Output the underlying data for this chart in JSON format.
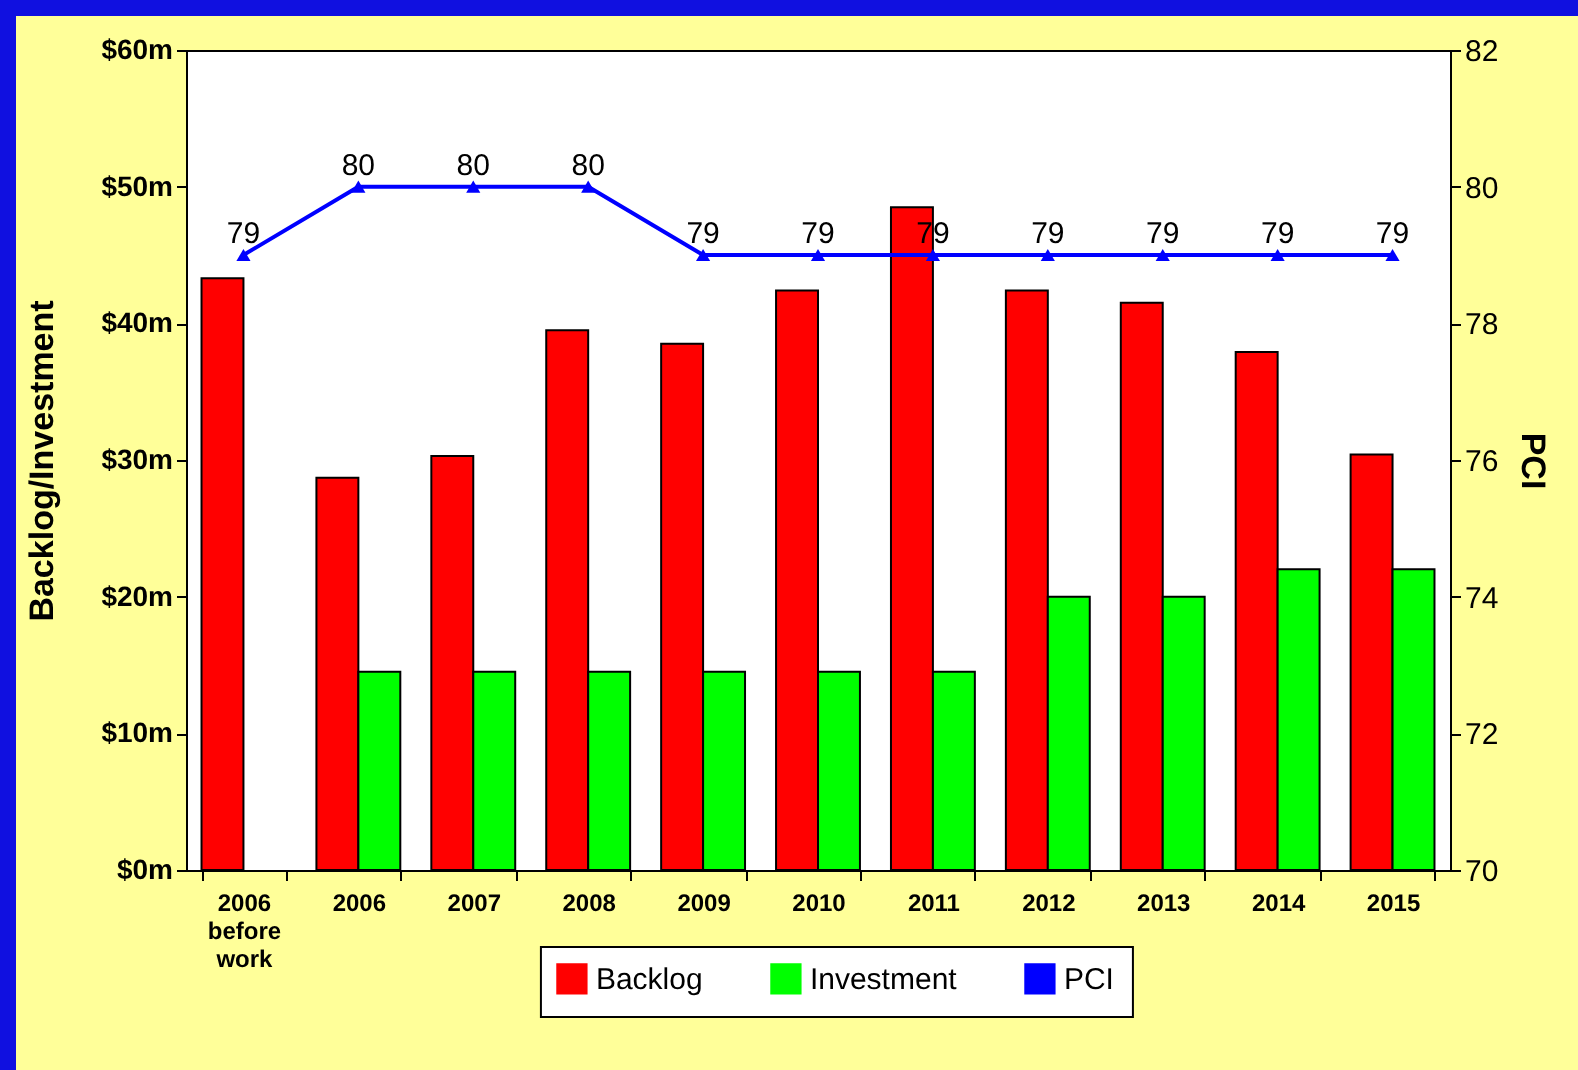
{
  "chart_data": {
    "type": "bar",
    "categories": [
      "2006 before work",
      "2006",
      "2007",
      "2008",
      "2009",
      "2010",
      "2011",
      "2012",
      "2013",
      "2014",
      "2015"
    ],
    "series": [
      {
        "name": "Backlog",
        "color": "#ff0000",
        "values": [
          43.3,
          28.7,
          30.3,
          39.5,
          38.5,
          42.4,
          48.5,
          42.4,
          41.5,
          37.9,
          30.4
        ]
      },
      {
        "name": "Investment",
        "color": "#00ff00",
        "values": [
          null,
          14.5,
          14.5,
          14.5,
          14.5,
          14.5,
          14.5,
          20.0,
          20.0,
          22.0,
          22.0
        ]
      },
      {
        "name": "PCI",
        "color": "#0000ff",
        "type": "line",
        "axis": "y2",
        "values": [
          79,
          80,
          80,
          80,
          79,
          79,
          79,
          79,
          79,
          79,
          79
        ],
        "value_labels": [
          "79",
          "80",
          "80",
          "80",
          "79",
          "79",
          "79",
          "79",
          "79",
          "79",
          "79"
        ]
      }
    ],
    "ylabel": "Backlog/Investment",
    "y2label": "PCI",
    "ylim": [
      0,
      60
    ],
    "yticks": [
      {
        "value": 0,
        "label": "$0m"
      },
      {
        "value": 10,
        "label": "$10m"
      },
      {
        "value": 20,
        "label": "$20m"
      },
      {
        "value": 30,
        "label": "$30m"
      },
      {
        "value": 40,
        "label": "$40m"
      },
      {
        "value": 50,
        "label": "$50m"
      },
      {
        "value": 60,
        "label": "$60m"
      }
    ],
    "y2lim": [
      70,
      82
    ],
    "y2ticks": [
      70,
      72,
      74,
      76,
      78,
      80,
      82
    ],
    "legend": "bottom",
    "marker": "triangle",
    "grid": false
  }
}
